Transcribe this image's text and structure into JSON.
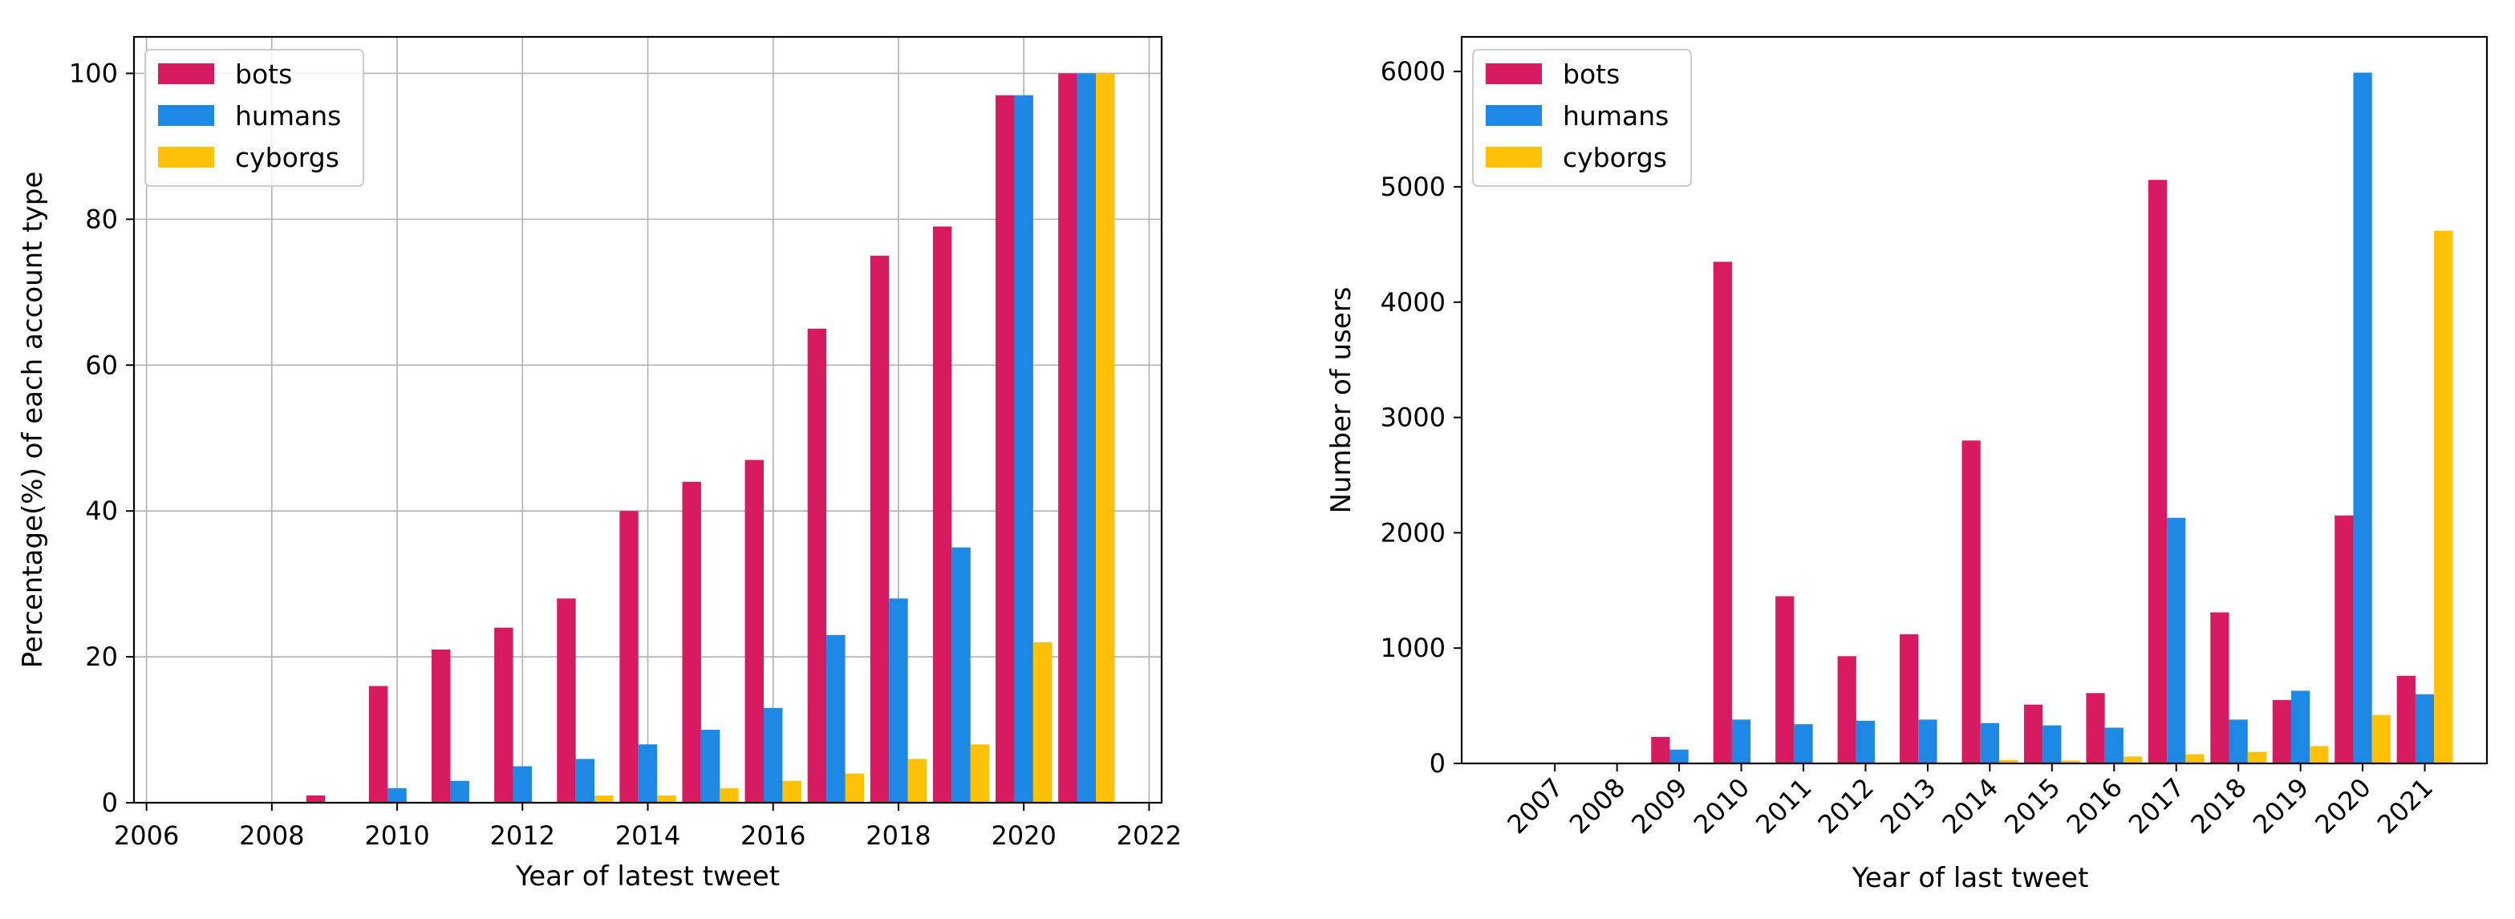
{
  "chart_data": [
    {
      "type": "bar",
      "xlabel": "Year of latest tweet",
      "ylabel": "Percentage(%) of each account type",
      "x": [
        2006,
        2007,
        2008,
        2009,
        2010,
        2011,
        2012,
        2013,
        2014,
        2015,
        2016,
        2017,
        2018,
        2019,
        2020,
        2021
      ],
      "xlim": [
        2005.8,
        2022.2
      ],
      "ylim": [
        0,
        105
      ],
      "xticks": [
        2006,
        2008,
        2010,
        2012,
        2014,
        2016,
        2018,
        2020,
        2022
      ],
      "xtick_labels": [
        "2006",
        "2008",
        "2010",
        "2012",
        "2014",
        "2016",
        "2018",
        "2020",
        "2022"
      ],
      "yticks": [
        0,
        20,
        40,
        60,
        80,
        100
      ],
      "ytick_labels": [
        "0",
        "20",
        "40",
        "60",
        "80",
        "100"
      ],
      "grid": true,
      "legend": "top-left",
      "series": [
        {
          "name": "bots",
          "color": "#d81b60",
          "values": [
            0,
            0,
            0,
            1,
            16,
            21,
            24,
            28,
            40,
            44,
            47,
            65,
            75,
            79,
            97,
            100
          ]
        },
        {
          "name": "humans",
          "color": "#1e88e5",
          "values": [
            0,
            0,
            0,
            0,
            2,
            3,
            5,
            6,
            8,
            10,
            13,
            23,
            28,
            35,
            97,
            100
          ]
        },
        {
          "name": "cyborgs",
          "color": "#ffc107",
          "values": [
            0,
            0,
            0,
            0,
            0,
            0,
            0,
            1,
            1,
            2,
            3,
            4,
            6,
            8,
            22,
            100
          ]
        }
      ]
    },
    {
      "type": "bar",
      "xlabel": "Year of last tweet",
      "ylabel": "Number of users",
      "categories": [
        "2007",
        "2008",
        "2009",
        "2010",
        "2011",
        "2012",
        "2013",
        "2014",
        "2015",
        "2016",
        "2017",
        "2018",
        "2019",
        "2020",
        "2021"
      ],
      "ylim": [
        0,
        6300
      ],
      "yticks": [
        0,
        1000,
        2000,
        3000,
        4000,
        5000,
        6000
      ],
      "ytick_labels": [
        "0",
        "1000",
        "2000",
        "3000",
        "4000",
        "5000",
        "6000"
      ],
      "grid": false,
      "legend": "top-left",
      "series": [
        {
          "name": "bots",
          "color": "#d81b60",
          "values": [
            0,
            5,
            230,
            4350,
            1450,
            930,
            1120,
            2800,
            510,
            610,
            5060,
            1310,
            550,
            2150,
            760
          ]
        },
        {
          "name": "humans",
          "color": "#1e88e5",
          "values": [
            0,
            5,
            120,
            380,
            340,
            370,
            380,
            350,
            330,
            310,
            2130,
            380,
            630,
            5990,
            600
          ]
        },
        {
          "name": "cyborgs",
          "color": "#ffc107",
          "values": [
            0,
            0,
            0,
            0,
            0,
            0,
            0,
            30,
            25,
            60,
            80,
            100,
            150,
            420,
            4620
          ]
        }
      ]
    }
  ]
}
